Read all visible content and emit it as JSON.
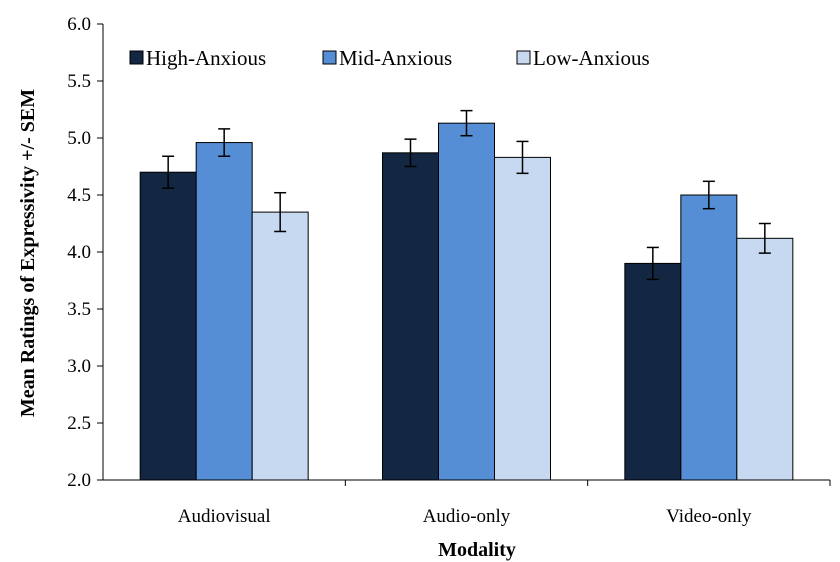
{
  "chart_data": {
    "type": "bar",
    "title": "",
    "xlabel": "Modality",
    "ylabel": "Mean Ratings of Expressivity +/- SEM",
    "ylim": [
      2.0,
      6.0
    ],
    "ytick_step": 0.5,
    "yticks": [
      "2.0",
      "2.5",
      "3.0",
      "3.5",
      "4.0",
      "4.5",
      "5.0",
      "5.5",
      "6.0"
    ],
    "categories": [
      "Audiovisual",
      "Audio-only",
      "Video-only"
    ],
    "grid": false,
    "legend_position": "top-left",
    "series": [
      {
        "name": "High-Anxious",
        "color": "#132642",
        "values": [
          4.7,
          4.87,
          3.9
        ],
        "errors": [
          0.14,
          0.12,
          0.14
        ]
      },
      {
        "name": "Mid-Anxious",
        "color": "#558ed5",
        "values": [
          4.96,
          5.13,
          4.5
        ],
        "errors": [
          0.12,
          0.11,
          0.12
        ]
      },
      {
        "name": "Low-Anxious",
        "color": "#c6d9f1",
        "values": [
          4.35,
          4.83,
          4.12
        ],
        "errors": [
          0.17,
          0.14,
          0.13
        ]
      }
    ]
  }
}
